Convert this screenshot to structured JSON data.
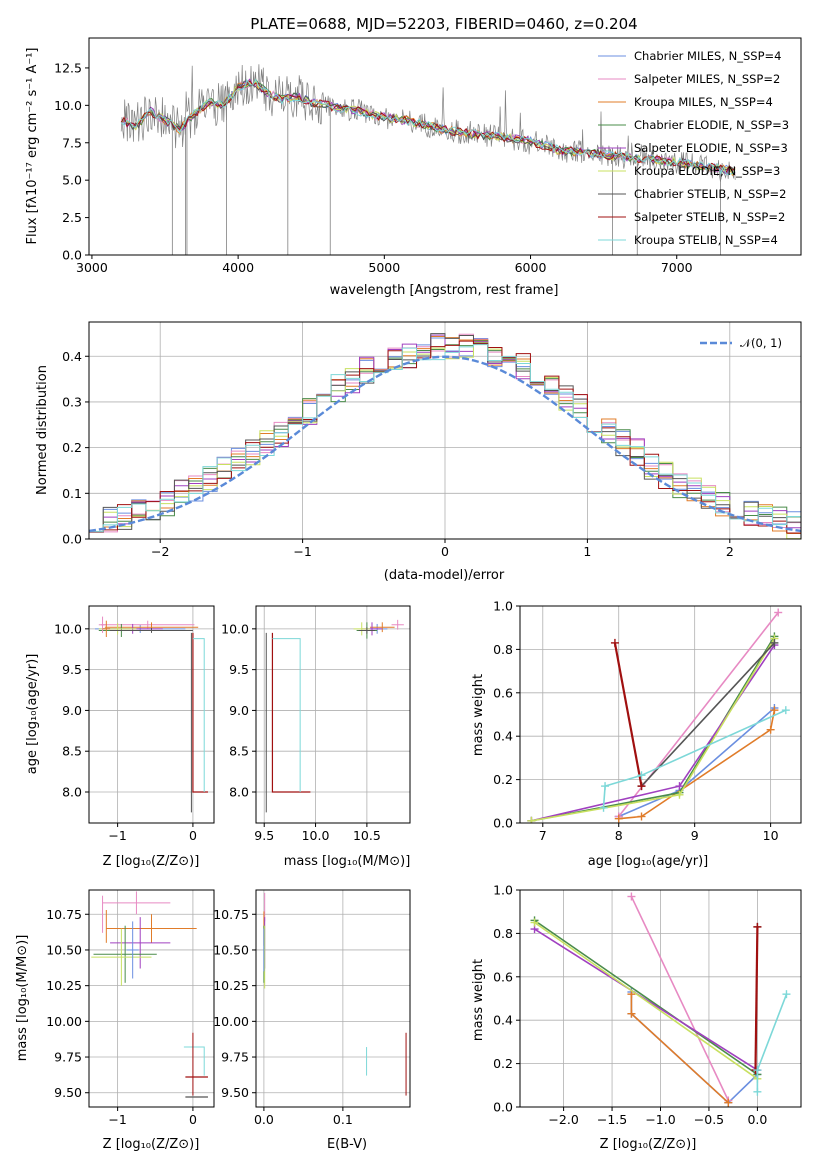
{
  "colors": {
    "grid": "#b0b0b0",
    "axis": "#000000",
    "chabrier_miles": "#6b8fe0",
    "salpeter_miles": "#e78ac3",
    "kroupa_miles": "#e07c2a",
    "chabrier_elodie": "#4a8c4a",
    "salpeter_elodie": "#a040c0",
    "kroupa_elodie": "#c8e060",
    "chabrier_stelib": "#555555",
    "salpeter_stelib": "#a01010",
    "kroupa_stelib": "#7dd8d8",
    "gauss": "#5a8ad8"
  },
  "chart_data": [
    {
      "id": "spectrum",
      "type": "line",
      "title": "PLATE=0688, MJD=52203, FIBERID=0460, z=0.204",
      "xlabel": "wavelength [Angstrom, rest frame]",
      "ylabel": "Flux [fλ10⁻¹⁷ erg cm⁻² s⁻¹ A⁻¹]",
      "xlim": [
        2980,
        7850
      ],
      "ylim": [
        0,
        14.5
      ],
      "xticks": [
        "3000",
        "4000",
        "5000",
        "6000",
        "7000"
      ],
      "yticks": [
        "0.0",
        "2.5",
        "5.0",
        "7.5",
        "10.0",
        "12.5"
      ],
      "legend_position": "top-right",
      "data_curve": {
        "x": [
          3200,
          3300,
          3400,
          3500,
          3600,
          3700,
          3800,
          3900,
          4000,
          4100,
          4200,
          4300,
          4400,
          4500,
          4600,
          4700,
          4800,
          4900,
          5000,
          5200,
          5400,
          5600,
          5800,
          6000,
          6200,
          6400,
          6600,
          6800,
          7000,
          7200,
          7400
        ],
        "y": [
          9.0,
          8.6,
          9.6,
          9.0,
          8.4,
          9.4,
          10.2,
          10.0,
          11.2,
          11.6,
          10.8,
          10.4,
          10.6,
          10.2,
          10.0,
          9.8,
          9.7,
          9.4,
          9.2,
          8.9,
          8.4,
          8.1,
          7.9,
          7.6,
          7.0,
          6.8,
          6.6,
          6.4,
          6.2,
          5.9,
          5.6
        ]
      },
      "series": [
        {
          "name": "Chabrier MILES, N_SSP=4"
        },
        {
          "name": "Salpeter MILES, N_SSP=2"
        },
        {
          "name": "Kroupa MILES, N_SSP=4"
        },
        {
          "name": "Chabrier ELODIE, N_SSP=3"
        },
        {
          "name": "Salpeter ELODIE, N_SSP=3"
        },
        {
          "name": "Kroupa ELODIE, N_SSP=3"
        },
        {
          "name": "Chabrier STELIB, N_SSP=2"
        },
        {
          "name": "Salpeter STELIB, N_SSP=2"
        },
        {
          "name": "Kroupa STELIB, N_SSP=4"
        }
      ]
    },
    {
      "id": "residuals",
      "type": "line",
      "xlabel": "(data-model)/error",
      "ylabel": "Normed distribution",
      "xlim": [
        -2.5,
        2.5
      ],
      "ylim": [
        0,
        0.475
      ],
      "xticks": [
        "−2",
        "−1",
        "0",
        "1",
        "2"
      ],
      "yticks": [
        "0.0",
        "0.1",
        "0.2",
        "0.3",
        "0.4"
      ],
      "legend_position": "top-right",
      "gauss_label": "𝒩(0, 1)",
      "histogram_bins": 50,
      "histogram_envelope": [
        0.03,
        0.04,
        0.05,
        0.06,
        0.07,
        0.08,
        0.1,
        0.11,
        0.13,
        0.15,
        0.17,
        0.19,
        0.21,
        0.23,
        0.26,
        0.28,
        0.3,
        0.33,
        0.35,
        0.37,
        0.38,
        0.4,
        0.4,
        0.41,
        0.42,
        0.42,
        0.42,
        0.41,
        0.4,
        0.39,
        0.38,
        0.36,
        0.34,
        0.31,
        0.29,
        0.26,
        0.24,
        0.21,
        0.19,
        0.16,
        0.14,
        0.12,
        0.11,
        0.09,
        0.08,
        0.07,
        0.06,
        0.05,
        0.04,
        0.03
      ]
    },
    {
      "id": "age_vs_z",
      "type": "scatter",
      "xlabel": "Z [log₁₀(Z/Z⊙)]",
      "ylabel": "age  [log₁₀(age/yr)]",
      "xlim": [
        -1.38,
        0.28
      ],
      "ylim": [
        7.62,
        10.28
      ],
      "xticks": [
        "−1",
        "0"
      ],
      "yticks": [
        "8.0",
        "8.5",
        "9.0",
        "9.5",
        "10.0"
      ]
    },
    {
      "id": "age_vs_mass",
      "type": "scatter",
      "xlabel": "mass [log₁₀(M/M⊙)]",
      "xlim": [
        9.42,
        10.92
      ],
      "ylim": [
        7.62,
        10.28
      ],
      "xticks": [
        "9.5",
        "10.0",
        "10.5"
      ],
      "yticks": [
        "8.0",
        "8.5",
        "9.0",
        "9.5",
        "10.0"
      ]
    },
    {
      "id": "weight_vs_age",
      "type": "line",
      "xlabel": "age  [log₁₀(age/yr)]",
      "ylabel": "mass weight",
      "xlim": [
        6.7,
        10.4
      ],
      "ylim": [
        0,
        1
      ],
      "xticks": [
        "7",
        "8",
        "9",
        "10"
      ],
      "yticks": [
        "0.0",
        "0.2",
        "0.4",
        "0.6",
        "0.8",
        "1.0"
      ],
      "series": [
        {
          "color_key": "chabrier_miles",
          "x": [
            8.0,
            8.8,
            10.05
          ],
          "y": [
            0.03,
            0.15,
            0.53
          ]
        },
        {
          "color_key": "salpeter_miles",
          "x": [
            8.0,
            10.1
          ],
          "y": [
            0.03,
            0.97
          ]
        },
        {
          "color_key": "kroupa_miles",
          "x": [
            8.0,
            8.3,
            10.0,
            10.05
          ],
          "y": [
            0.02,
            0.03,
            0.43,
            0.52
          ]
        },
        {
          "color_key": "chabrier_elodie",
          "x": [
            6.85,
            8.8,
            10.05
          ],
          "y": [
            0.01,
            0.14,
            0.86
          ]
        },
        {
          "color_key": "salpeter_elodie",
          "x": [
            6.85,
            8.8,
            10.05
          ],
          "y": [
            0.01,
            0.17,
            0.82
          ]
        },
        {
          "color_key": "kroupa_elodie",
          "x": [
            6.85,
            8.8,
            10.05
          ],
          "y": [
            0.01,
            0.13,
            0.85
          ]
        },
        {
          "color_key": "chabrier_stelib",
          "x": [
            8.3,
            10.05
          ],
          "y": [
            0.17,
            0.83
          ]
        },
        {
          "color_key": "salpeter_stelib",
          "x": [
            7.95,
            8.3
          ],
          "y": [
            0.83,
            0.17
          ]
        },
        {
          "color_key": "kroupa_stelib",
          "x": [
            7.8,
            7.82,
            8.3,
            10.2
          ],
          "y": [
            0.07,
            0.17,
            0.22,
            0.52
          ]
        }
      ]
    },
    {
      "id": "mass_vs_z",
      "type": "scatter",
      "xlabel": "Z [log₁₀(Z/Z⊙)]",
      "ylabel": "mass [log₁₀(M/M⊙)]",
      "xlim": [
        -1.38,
        0.28
      ],
      "ylim": [
        9.4,
        10.92
      ],
      "xticks": [
        "−1",
        "0"
      ],
      "yticks": [
        "9.50",
        "9.75",
        "10.00",
        "10.25",
        "10.50",
        "10.75"
      ]
    },
    {
      "id": "mass_vs_ebv",
      "type": "scatter",
      "xlabel": "E(B-V)",
      "xlim": [
        -0.01,
        0.185
      ],
      "ylim": [
        9.4,
        10.92
      ],
      "xticks": [
        "0.0",
        "0.1"
      ],
      "yticks": [
        "9.50",
        "9.75",
        "10.00",
        "10.25",
        "10.50",
        "10.75"
      ]
    },
    {
      "id": "weight_vs_z",
      "type": "line",
      "xlabel": "Z [log₁₀(Z/Z⊙)]",
      "ylabel": "mass weight",
      "xlim": [
        -2.45,
        0.45
      ],
      "ylim": [
        0,
        1
      ],
      "xticks": [
        "−2.0",
        "−1.5",
        "−1.0",
        "−0.5",
        "0.0"
      ],
      "yticks": [
        "0.0",
        "0.2",
        "0.4",
        "0.6",
        "0.8",
        "1.0"
      ],
      "series": [
        {
          "color_key": "chabrier_miles",
          "x": [
            -1.3,
            -1.3,
            -0.3,
            0.0
          ],
          "y": [
            0.53,
            0.43,
            0.02,
            0.15
          ]
        },
        {
          "color_key": "salpeter_miles",
          "x": [
            -1.3,
            -0.3
          ],
          "y": [
            0.97,
            0.03
          ]
        },
        {
          "color_key": "kroupa_miles",
          "x": [
            -1.3,
            -1.3,
            -0.3
          ],
          "y": [
            0.52,
            0.43,
            0.02
          ]
        },
        {
          "color_key": "chabrier_elodie",
          "x": [
            -2.3,
            0.0
          ],
          "y": [
            0.86,
            0.15
          ]
        },
        {
          "color_key": "salpeter_elodie",
          "x": [
            -2.3,
            0.0
          ],
          "y": [
            0.82,
            0.17
          ]
        },
        {
          "color_key": "kroupa_elodie",
          "x": [
            -2.3,
            0.0
          ],
          "y": [
            0.85,
            0.13
          ]
        },
        {
          "color_key": "chabrier_stelib",
          "x": [
            -0.02,
            0.0
          ],
          "y": [
            0.17,
            0.83
          ]
        },
        {
          "color_key": "salpeter_stelib",
          "x": [
            -0.02,
            0.0
          ],
          "y": [
            0.17,
            0.83
          ]
        },
        {
          "color_key": "kroupa_stelib",
          "x": [
            0.0,
            0.0,
            0.3
          ],
          "y": [
            0.07,
            0.17,
            0.52
          ]
        }
      ]
    }
  ]
}
